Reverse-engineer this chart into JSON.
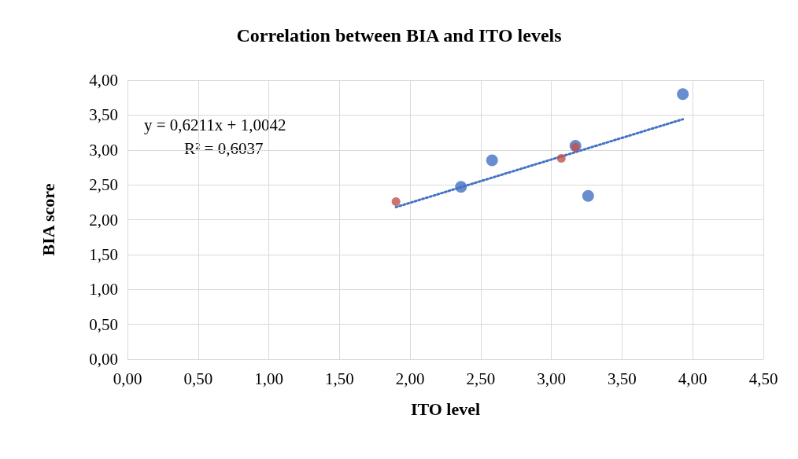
{
  "chart_data": {
    "type": "scatter",
    "title": "Correlation between BIA and ITO levels",
    "xlabel": "ITO level",
    "ylabel": "BIA score",
    "annotations": [
      "y = 0,6211x + 1,0042",
      "R² = 0,6037"
    ],
    "xlim": [
      0,
      4.5
    ],
    "ylim": [
      0,
      4
    ],
    "xticks": [
      {
        "value": 0,
        "label": "0,00"
      },
      {
        "value": 0.5,
        "label": "0,50"
      },
      {
        "value": 1,
        "label": "1,00"
      },
      {
        "value": 1.5,
        "label": "1,50"
      },
      {
        "value": 2,
        "label": "2,00"
      },
      {
        "value": 2.5,
        "label": "2,50"
      },
      {
        "value": 3,
        "label": "3,00"
      },
      {
        "value": 3.5,
        "label": "3,50"
      },
      {
        "value": 4,
        "label": "4,00"
      },
      {
        "value": 4.5,
        "label": "4,50"
      }
    ],
    "yticks": [
      {
        "value": 0,
        "label": "0,00"
      },
      {
        "value": 0.5,
        "label": "0,50"
      },
      {
        "value": 1,
        "label": "1,00"
      },
      {
        "value": 1.5,
        "label": "1,50"
      },
      {
        "value": 2,
        "label": "2,00"
      },
      {
        "value": 2.5,
        "label": "2,50"
      },
      {
        "value": 3,
        "label": "3,00"
      },
      {
        "value": 3.5,
        "label": "3,50"
      },
      {
        "value": 4,
        "label": "4,00"
      }
    ],
    "grid": true,
    "marker": "circle",
    "series": [
      {
        "color": "#c0504d",
        "x": [
          1.9,
          3.07,
          3.17
        ],
        "values": [
          2.26,
          2.88,
          3.04
        ]
      },
      {
        "color": "#4472c4",
        "x": [
          2.36,
          2.58,
          3.17,
          3.26,
          3.93
        ],
        "values": [
          2.47,
          2.85,
          3.06,
          2.34,
          3.8
        ]
      },
      {
        "type": "line",
        "color": "#4472c4",
        "line_style": "dotted",
        "marker": "none",
        "x": [
          1.9,
          3.93
        ],
        "values": [
          2.18,
          3.44
        ]
      }
    ]
  }
}
